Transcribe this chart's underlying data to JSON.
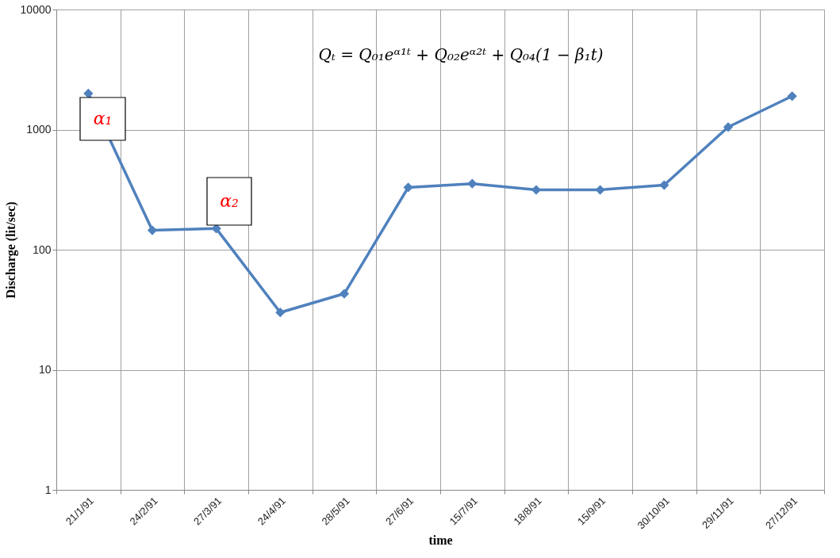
{
  "chart_data": {
    "type": "line",
    "xlabel": "time",
    "ylabel": "Discharge (lit/sec)",
    "categories": [
      "21/1/91",
      "24/2/91",
      "27/3/91",
      "24/4/91",
      "28/5/91",
      "27/6/91",
      "15/7/91",
      "18/8/91",
      "15/9/91",
      "30/10/91",
      "29/11/91",
      "27/12/91"
    ],
    "series": [
      {
        "color": "#4f81bd",
        "values": [
          2000,
          145,
          150,
          30,
          43,
          330,
          355,
          315,
          315,
          345,
          1050,
          1900
        ]
      }
    ],
    "log": true,
    "ylim": [
      1,
      10000
    ],
    "yticks": [
      1,
      10,
      100,
      1000,
      10000
    ],
    "grid": true,
    "marker": "diamond",
    "line_style": "solid",
    "annotations": [
      "Qₜ = Q₀₁eᵅ¹ᵗ + Q₀₂eᵅ²ᵗ + Q₀₄(1 − β₁t)",
      "α₁",
      "α₂"
    ]
  }
}
